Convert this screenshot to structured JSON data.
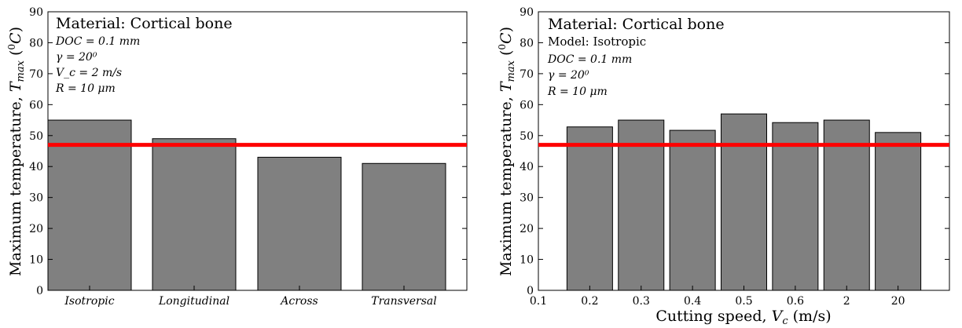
{
  "colors": {
    "bar_fill": "#808080",
    "bar_stroke": "#000000",
    "threshold_line": "#ff0000",
    "model_text": "#0000ff"
  },
  "chart_data": [
    {
      "type": "bar",
      "categories": [
        "Isotropic",
        "Longitudinal",
        "Across",
        "Transversal"
      ],
      "values": [
        55,
        49,
        43,
        41
      ],
      "ylabel": "Maximum temperature, T_max (⁰C)",
      "xlabel": "",
      "ylim": [
        0,
        90
      ],
      "yticks": [
        0,
        10,
        20,
        30,
        40,
        50,
        60,
        70,
        80,
        90
      ],
      "reference_line": 47,
      "annotation": {
        "title": "Material: Cortical bone",
        "lines": [
          "DOC = 0.1 mm",
          "γ = 20⁰",
          "V_c = 2 m/s",
          "R = 10 μm"
        ]
      }
    },
    {
      "type": "bar",
      "categories": [
        "0.2",
        "0.3",
        "0.4",
        "0.5",
        "0.6",
        "2",
        "20"
      ],
      "values": [
        52.8,
        55,
        51.7,
        57,
        54.2,
        55,
        51
      ],
      "xlabel": "Cutting speed, V_c (m/s)",
      "ylabel": "Maximum temperature, T_max (⁰C)",
      "ylim": [
        0,
        90
      ],
      "yticks": [
        0,
        10,
        20,
        30,
        40,
        50,
        60,
        70,
        80,
        90
      ],
      "xticks": [
        "0.1",
        "0.2",
        "0.3",
        "0.4",
        "0.5",
        "0.6",
        "2",
        "20"
      ],
      "reference_line": 47,
      "annotation": {
        "title": "Material: Cortical bone",
        "model": "Model: Isotropic",
        "lines": [
          "DOC = 0.1 mm",
          "γ = 20⁰",
          "R = 10 μm"
        ]
      }
    }
  ]
}
